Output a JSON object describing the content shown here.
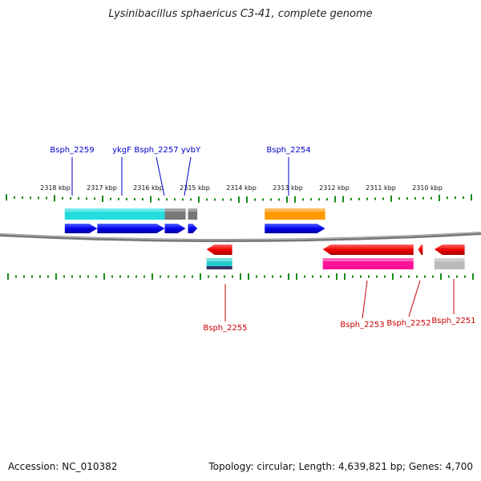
{
  "title": "Lysinibacillus sphaericus C3-41, complete genome",
  "footer": {
    "accession": "Accession: NC_010382",
    "summary": "Topology: circular; Length: 4,639,821 bp; Genes: 4,700"
  },
  "colors": {
    "forward_label": "#0000cc",
    "reverse_label": "#cc0000",
    "tick": "#1a8a1a",
    "backbone": "#777777"
  },
  "scale_labels": [
    "2318 kbp",
    "2317 kbp",
    "2316 kbp",
    "2315 kbp",
    "2314 kbp",
    "2313 kbp",
    "2312 kbp",
    "2311 kbp",
    "2310 kbp"
  ],
  "forward_genes": [
    {
      "name": "Bsph_2259",
      "start_kbp": 2317.9,
      "end_kbp": 2317.2,
      "band_color": "#22dddd"
    },
    {
      "name": "ykgF",
      "start_kbp": 2317.2,
      "end_kbp": 2315.75,
      "band_color": "#22dddd"
    },
    {
      "name": "Bsph_2257",
      "start_kbp": 2315.75,
      "end_kbp": 2315.3,
      "band_color": "#777777"
    },
    {
      "name": "yvbY",
      "start_kbp": 2315.25,
      "end_kbp": 2315.05,
      "band_color": "#777777"
    },
    {
      "name": "Bsph_2254",
      "start_kbp": 2313.6,
      "end_kbp": 2312.3,
      "band_color": "#ff9900"
    }
  ],
  "reverse_genes": [
    {
      "name": "Bsph_2255",
      "start_kbp": 2314.3,
      "end_kbp": 2314.85,
      "band_color": "#22cccc"
    },
    {
      "name": "Bsph_2253",
      "start_kbp": 2310.4,
      "end_kbp": 2312.35,
      "band_color": "#ff1199"
    },
    {
      "name": "Bsph_2252",
      "start_kbp": 2310.2,
      "end_kbp": 2310.3,
      "band_color": ""
    },
    {
      "name": "Bsph_2251",
      "start_kbp": 2309.3,
      "end_kbp": 2309.95,
      "band_color": "#bbbbbb"
    }
  ]
}
